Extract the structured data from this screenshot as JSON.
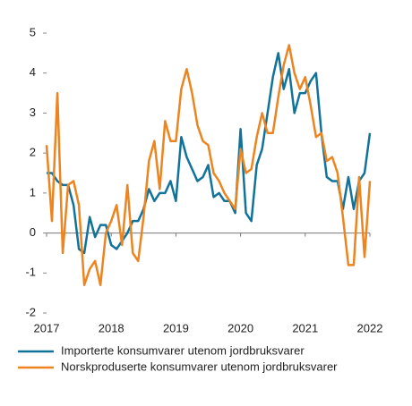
{
  "chart_data": {
    "type": "line",
    "x": [
      2017,
      2017.083,
      2017.167,
      2017.25,
      2017.333,
      2017.417,
      2017.5,
      2017.583,
      2017.667,
      2017.75,
      2017.833,
      2017.917,
      2018,
      2018.083,
      2018.167,
      2018.25,
      2018.333,
      2018.417,
      2018.5,
      2018.583,
      2018.667,
      2018.75,
      2018.833,
      2018.917,
      2019,
      2019.083,
      2019.167,
      2019.25,
      2019.333,
      2019.417,
      2019.5,
      2019.583,
      2019.667,
      2019.75,
      2019.833,
      2019.917,
      2020,
      2020.083,
      2020.167,
      2020.25,
      2020.333,
      2020.417,
      2020.5,
      2020.583,
      2020.667,
      2020.75,
      2020.833,
      2020.917,
      2021,
      2021.083,
      2021.167,
      2021.25,
      2021.333,
      2021.417,
      2021.5,
      2021.583,
      2021.667,
      2021.75,
      2021.833,
      2021.917,
      2022
    ],
    "series": [
      {
        "name": "Importerte konsumvarer utenom jordbruksvarer",
        "color": "#12739a",
        "values": [
          1.5,
          1.5,
          1.3,
          1.2,
          1.2,
          0.7,
          -0.4,
          -0.5,
          0.4,
          -0.1,
          0.2,
          0.2,
          -0.3,
          -0.4,
          -0.2,
          0.0,
          0.3,
          0.3,
          0.6,
          1.1,
          0.8,
          1.0,
          1.0,
          1.3,
          0.8,
          2.4,
          1.9,
          1.6,
          1.3,
          1.4,
          1.7,
          0.9,
          1.0,
          0.8,
          0.8,
          0.5,
          2.6,
          0.5,
          0.3,
          1.7,
          2.1,
          3.0,
          3.9,
          4.5,
          3.6,
          4.1,
          3.0,
          3.5,
          3.5,
          3.8,
          4.0,
          2.5,
          1.4,
          1.3,
          1.3,
          0.6,
          1.4,
          0.6,
          1.3,
          1.5,
          2.5
        ]
      },
      {
        "name": "Norskproduserte konsumvarer utenom jordbruksvarer",
        "color": "#ec8420",
        "values": [
          2.2,
          0.3,
          3.5,
          -0.5,
          1.2,
          1.3,
          0.7,
          -1.3,
          -0.9,
          -0.7,
          -1.3,
          0.0,
          0.3,
          0.7,
          -0.3,
          1.2,
          -0.5,
          -0.7,
          0.4,
          1.8,
          2.3,
          1.1,
          2.8,
          2.3,
          2.3,
          3.6,
          4.1,
          3.5,
          2.7,
          2.3,
          2.2,
          1.5,
          1.3,
          1.0,
          0.8,
          0.6,
          2.1,
          1.5,
          1.6,
          2.4,
          3.0,
          2.5,
          2.5,
          3.4,
          4.2,
          4.7,
          4.0,
          3.6,
          3.9,
          3.2,
          2.4,
          2.5,
          1.8,
          1.9,
          1.5,
          0.4,
          -0.8,
          -0.8,
          1.4,
          -0.6,
          1.3
        ]
      }
    ],
    "xlim": [
      2017,
      2022
    ],
    "xticks": [
      2017,
      2018,
      2019,
      2020,
      2021,
      2022
    ],
    "ylim": [
      -2,
      5
    ],
    "yticks": [
      -2,
      -1,
      0,
      1,
      2,
      3,
      4,
      5
    ]
  }
}
